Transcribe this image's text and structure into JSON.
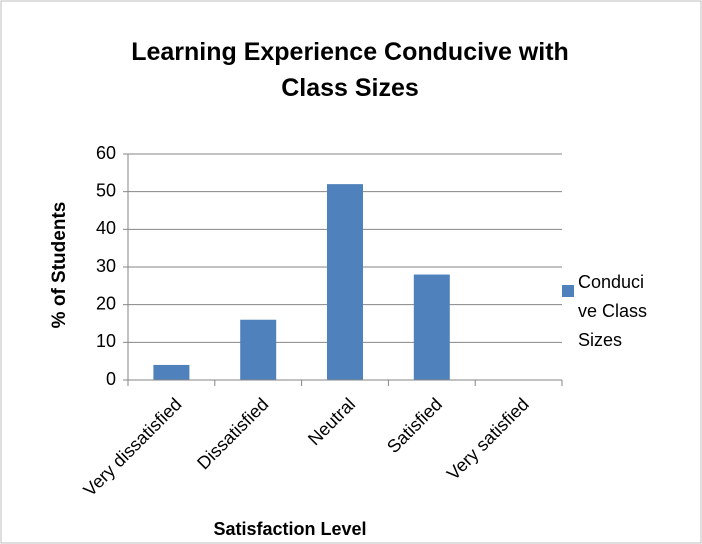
{
  "chart_data": {
    "type": "bar",
    "title": "Learning Experience Conducive with Class Sizes",
    "x_label": "Satisfaction Level",
    "y_label": "% of Students",
    "categories": [
      "Very dissatisfied",
      "Dissatisfied",
      "Neutral",
      "Satisfied",
      "Very satisfied"
    ],
    "series": [
      {
        "name": "Conducive Class Sizes",
        "color": "#4f81bd",
        "values": [
          4,
          16,
          52,
          28,
          0
        ]
      }
    ],
    "ylim": [
      0,
      60
    ],
    "yticks": [
      0,
      10,
      20,
      30,
      40,
      50,
      60
    ],
    "grid": true,
    "legend": "right"
  }
}
